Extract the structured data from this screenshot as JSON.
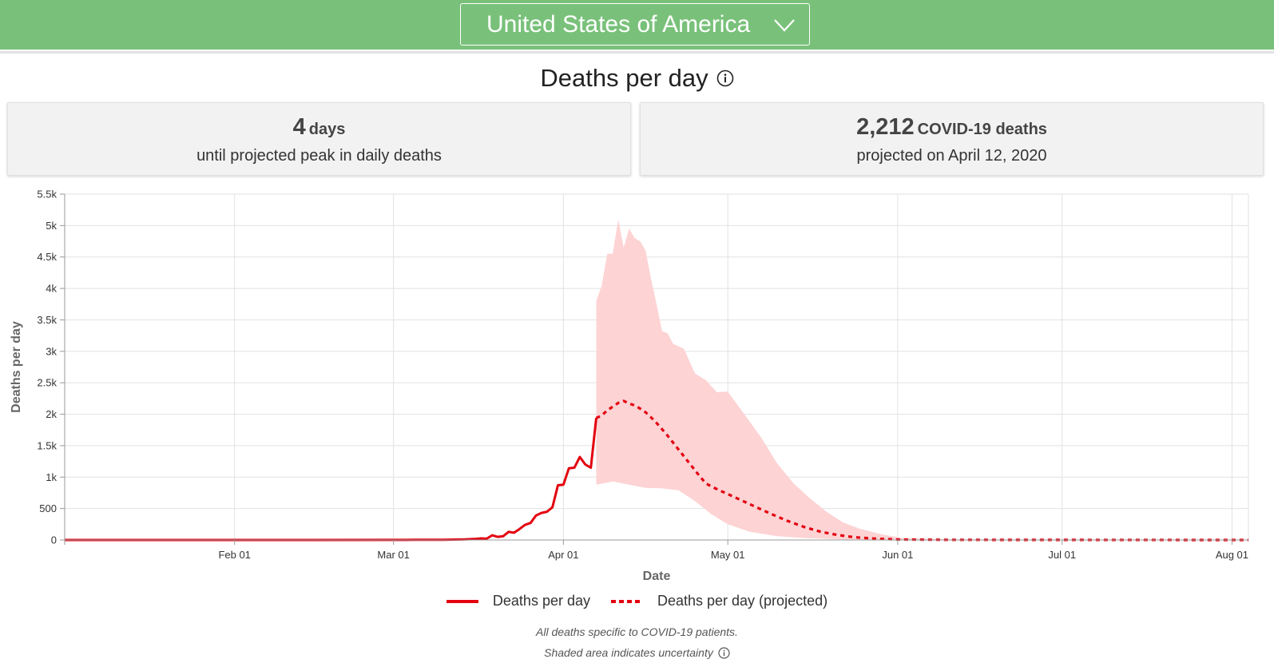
{
  "header": {
    "country": "United States of America",
    "icon": "chevron-down-icon"
  },
  "title": {
    "text": "Deaths per day",
    "icon": "info-icon"
  },
  "cards": {
    "peak": {
      "value": "4",
      "unit": "days",
      "subtitle": "until projected peak in daily deaths"
    },
    "deaths": {
      "value": "2,212",
      "unit": "COVID-19 deaths",
      "subtitle": "projected on April 12, 2020"
    }
  },
  "colors": {
    "header": "#79c17a",
    "series": "#e3000f",
    "band": "#fdd3d4"
  },
  "chart_data": {
    "type": "line",
    "xlabel": "Date",
    "ylabel": "Deaths per day",
    "xlim": [
      "2020-01-01",
      "2020-08-04"
    ],
    "ylim": [
      0,
      5500
    ],
    "grid": true,
    "legend_placement": "bottom",
    "x_ticks": [
      {
        "date": "2020-02-01",
        "label": "Feb 01"
      },
      {
        "date": "2020-03-01",
        "label": "Mar 01"
      },
      {
        "date": "2020-04-01",
        "label": "Apr 01"
      },
      {
        "date": "2020-05-01",
        "label": "May 01"
      },
      {
        "date": "2020-06-01",
        "label": "Jun 01"
      },
      {
        "date": "2020-07-01",
        "label": "Jul 01"
      },
      {
        "date": "2020-08-01",
        "label": "Aug 01"
      }
    ],
    "y_ticks": [
      {
        "value": 0,
        "label": "0"
      },
      {
        "value": 500,
        "label": "500"
      },
      {
        "value": 1000,
        "label": "1k"
      },
      {
        "value": 1500,
        "label": "1.5k"
      },
      {
        "value": 2000,
        "label": "2k"
      },
      {
        "value": 2500,
        "label": "2.5k"
      },
      {
        "value": 3000,
        "label": "3k"
      },
      {
        "value": 3500,
        "label": "3.5k"
      },
      {
        "value": 4000,
        "label": "4k"
      },
      {
        "value": 4500,
        "label": "4.5k"
      },
      {
        "value": 5000,
        "label": "5k"
      },
      {
        "value": 5500,
        "label": "5.5k"
      }
    ],
    "series": [
      {
        "name": "Deaths per day",
        "style": "solid",
        "points": [
          {
            "x": "2020-01-01",
            "y": 0
          },
          {
            "x": "2020-02-01",
            "y": 0
          },
          {
            "x": "2020-03-01",
            "y": 1
          },
          {
            "x": "2020-03-05",
            "y": 2
          },
          {
            "x": "2020-03-10",
            "y": 4
          },
          {
            "x": "2020-03-14",
            "y": 10
          },
          {
            "x": "2020-03-16",
            "y": 18
          },
          {
            "x": "2020-03-17",
            "y": 25
          },
          {
            "x": "2020-03-18",
            "y": 20
          },
          {
            "x": "2020-03-19",
            "y": 75
          },
          {
            "x": "2020-03-20",
            "y": 50
          },
          {
            "x": "2020-03-21",
            "y": 60
          },
          {
            "x": "2020-03-22",
            "y": 130
          },
          {
            "x": "2020-03-23",
            "y": 115
          },
          {
            "x": "2020-03-24",
            "y": 175
          },
          {
            "x": "2020-03-25",
            "y": 240
          },
          {
            "x": "2020-03-26",
            "y": 270
          },
          {
            "x": "2020-03-27",
            "y": 390
          },
          {
            "x": "2020-03-28",
            "y": 430
          },
          {
            "x": "2020-03-29",
            "y": 450
          },
          {
            "x": "2020-03-30",
            "y": 520
          },
          {
            "x": "2020-03-31",
            "y": 870
          },
          {
            "x": "2020-04-01",
            "y": 880
          },
          {
            "x": "2020-04-02",
            "y": 1140
          },
          {
            "x": "2020-04-03",
            "y": 1150
          },
          {
            "x": "2020-04-04",
            "y": 1320
          },
          {
            "x": "2020-04-05",
            "y": 1200
          },
          {
            "x": "2020-04-06",
            "y": 1150
          },
          {
            "x": "2020-04-07",
            "y": 1940
          }
        ]
      },
      {
        "name": "Deaths per day (projected)",
        "style": "dashed",
        "points": [
          {
            "x": "2020-04-07",
            "y": 1940
          },
          {
            "x": "2020-04-08",
            "y": 1980
          },
          {
            "x": "2020-04-09",
            "y": 2060
          },
          {
            "x": "2020-04-10",
            "y": 2120
          },
          {
            "x": "2020-04-11",
            "y": 2180
          },
          {
            "x": "2020-04-12",
            "y": 2212
          },
          {
            "x": "2020-04-13",
            "y": 2170
          },
          {
            "x": "2020-04-14",
            "y": 2140
          },
          {
            "x": "2020-04-15",
            "y": 2090
          },
          {
            "x": "2020-04-16",
            "y": 2030
          },
          {
            "x": "2020-04-17",
            "y": 1950
          },
          {
            "x": "2020-04-18",
            "y": 1860
          },
          {
            "x": "2020-04-19",
            "y": 1760
          },
          {
            "x": "2020-04-20",
            "y": 1660
          },
          {
            "x": "2020-04-21",
            "y": 1550
          },
          {
            "x": "2020-04-22",
            "y": 1440
          },
          {
            "x": "2020-04-23",
            "y": 1330
          },
          {
            "x": "2020-04-24",
            "y": 1220
          },
          {
            "x": "2020-04-25",
            "y": 1110
          },
          {
            "x": "2020-04-26",
            "y": 1000
          },
          {
            "x": "2020-04-27",
            "y": 900
          },
          {
            "x": "2020-04-28",
            "y": 850
          },
          {
            "x": "2020-04-30",
            "y": 770
          },
          {
            "x": "2020-05-03",
            "y": 650
          },
          {
            "x": "2020-05-06",
            "y": 530
          },
          {
            "x": "2020-05-09",
            "y": 410
          },
          {
            "x": "2020-05-12",
            "y": 300
          },
          {
            "x": "2020-05-15",
            "y": 205
          },
          {
            "x": "2020-05-18",
            "y": 130
          },
          {
            "x": "2020-05-21",
            "y": 80
          },
          {
            "x": "2020-05-24",
            "y": 45
          },
          {
            "x": "2020-05-28",
            "y": 20
          },
          {
            "x": "2020-06-01",
            "y": 8
          },
          {
            "x": "2020-06-10",
            "y": 3
          },
          {
            "x": "2020-07-01",
            "y": 1
          },
          {
            "x": "2020-08-04",
            "y": 0
          }
        ]
      }
    ],
    "uncertainty_band": {
      "upper": [
        {
          "x": "2020-04-07",
          "y": 3800
        },
        {
          "x": "2020-04-08",
          "y": 4050
        },
        {
          "x": "2020-04-09",
          "y": 4550
        },
        {
          "x": "2020-04-10",
          "y": 4550
        },
        {
          "x": "2020-04-11",
          "y": 5100
        },
        {
          "x": "2020-04-12",
          "y": 4650
        },
        {
          "x": "2020-04-13",
          "y": 4950
        },
        {
          "x": "2020-04-14",
          "y": 4800
        },
        {
          "x": "2020-04-15",
          "y": 4750
        },
        {
          "x": "2020-04-16",
          "y": 4600
        },
        {
          "x": "2020-04-17",
          "y": 4150
        },
        {
          "x": "2020-04-18",
          "y": 3750
        },
        {
          "x": "2020-04-19",
          "y": 3320
        },
        {
          "x": "2020-04-20",
          "y": 3290
        },
        {
          "x": "2020-04-21",
          "y": 3120
        },
        {
          "x": "2020-04-23",
          "y": 3040
        },
        {
          "x": "2020-04-25",
          "y": 2650
        },
        {
          "x": "2020-04-27",
          "y": 2540
        },
        {
          "x": "2020-04-29",
          "y": 2350
        },
        {
          "x": "2020-05-01",
          "y": 2360
        },
        {
          "x": "2020-05-04",
          "y": 2000
        },
        {
          "x": "2020-05-07",
          "y": 1640
        },
        {
          "x": "2020-05-10",
          "y": 1220
        },
        {
          "x": "2020-05-13",
          "y": 900
        },
        {
          "x": "2020-05-16",
          "y": 660
        },
        {
          "x": "2020-05-19",
          "y": 450
        },
        {
          "x": "2020-05-22",
          "y": 280
        },
        {
          "x": "2020-05-25",
          "y": 180
        },
        {
          "x": "2020-05-29",
          "y": 90
        },
        {
          "x": "2020-06-02",
          "y": 30
        },
        {
          "x": "2020-06-10",
          "y": 10
        },
        {
          "x": "2020-07-01",
          "y": 3
        },
        {
          "x": "2020-08-04",
          "y": 2
        }
      ],
      "lower": [
        {
          "x": "2020-04-07",
          "y": 880
        },
        {
          "x": "2020-04-10",
          "y": 930
        },
        {
          "x": "2020-04-13",
          "y": 880
        },
        {
          "x": "2020-04-16",
          "y": 830
        },
        {
          "x": "2020-04-19",
          "y": 820
        },
        {
          "x": "2020-04-22",
          "y": 790
        },
        {
          "x": "2020-04-25",
          "y": 620
        },
        {
          "x": "2020-04-28",
          "y": 410
        },
        {
          "x": "2020-05-01",
          "y": 250
        },
        {
          "x": "2020-05-05",
          "y": 130
        },
        {
          "x": "2020-05-10",
          "y": 60
        },
        {
          "x": "2020-05-15",
          "y": 30
        },
        {
          "x": "2020-05-22",
          "y": 10
        },
        {
          "x": "2020-06-01",
          "y": 2
        },
        {
          "x": "2020-08-04",
          "y": 0
        }
      ]
    }
  },
  "legend": [
    {
      "label": "Deaths per day",
      "style": "solid"
    },
    {
      "label": "Deaths per day (projected)",
      "style": "dashed"
    }
  ],
  "notes": {
    "line1": "All deaths specific to COVID-19 patients.",
    "line2": "Shaded area indicates uncertainty",
    "icon": "info-icon"
  }
}
